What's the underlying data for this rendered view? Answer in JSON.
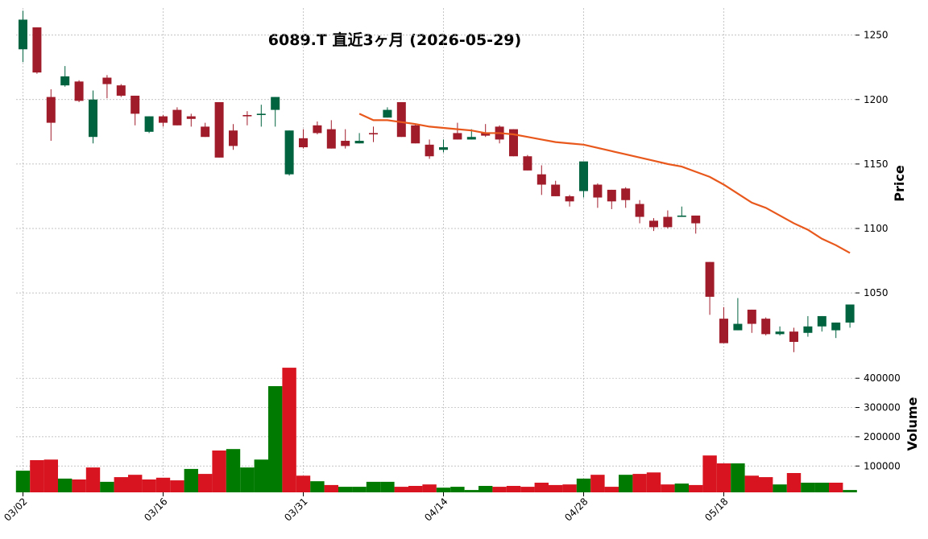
{
  "chart_data": {
    "type": "candlestick",
    "title": "6089.T  直近3ヶ月  (2026-05-29)",
    "categories": [
      "03/02",
      null,
      null,
      null,
      null,
      null,
      null,
      null,
      null,
      null,
      "03/16",
      null,
      null,
      null,
      null,
      null,
      null,
      null,
      null,
      null,
      "03/31",
      null,
      null,
      null,
      null,
      null,
      null,
      null,
      null,
      null,
      "04/14",
      null,
      null,
      null,
      null,
      null,
      null,
      null,
      null,
      null,
      "04/28",
      null,
      null,
      null,
      null,
      null,
      null,
      null,
      null,
      null,
      "05/18",
      null,
      null,
      null,
      null,
      null,
      null,
      null,
      null,
      null
    ],
    "open": [
      1239,
      1256,
      1202,
      1211,
      1214,
      1171,
      1217,
      1211,
      1203,
      1175,
      1187,
      1192,
      1187,
      1179,
      1198,
      1176,
      1188,
      1188,
      1192,
      1142,
      1170,
      1180,
      1177,
      1168,
      1166,
      1174,
      1186,
      1198,
      1180,
      1165,
      1161,
      1174,
      1169,
      1174,
      1179,
      1177,
      1156,
      1142,
      1134,
      1125,
      1129,
      1134,
      1130,
      1131,
      1119,
      1106,
      1109,
      1109,
      1110,
      1074,
      1030,
      1021,
      1037,
      1030,
      1018,
      1020,
      1019,
      1024,
      1021,
      1027
    ],
    "high": [
      1269,
      1256,
      1208,
      1226,
      1215,
      1207,
      1219,
      1212,
      1203,
      1187,
      1188,
      1194,
      1189,
      1182,
      1198,
      1181,
      1191,
      1196,
      1202,
      1176,
      1177,
      1183,
      1184,
      1177,
      1174,
      1179,
      1194,
      1198,
      1181,
      1169,
      1169,
      1182,
      1177,
      1181,
      1180,
      1177,
      1157,
      1149,
      1137,
      1126,
      1152,
      1135,
      1130,
      1132,
      1122,
      1108,
      1114,
      1117,
      1110,
      1074,
      1039,
      1046,
      1037,
      1031,
      1024,
      1023,
      1032,
      1032,
      1027,
      1041
    ],
    "low": [
      1229,
      1220,
      1168,
      1210,
      1198,
      1166,
      1201,
      1202,
      1180,
      1174,
      1179,
      1180,
      1179,
      1171,
      1155,
      1161,
      1180,
      1179,
      1179,
      1141,
      1162,
      1173,
      1162,
      1162,
      1166,
      1167,
      1186,
      1171,
      1166,
      1154,
      1159,
      1169,
      1169,
      1171,
      1166,
      1156,
      1145,
      1126,
      1125,
      1117,
      1124,
      1116,
      1115,
      1116,
      1104,
      1098,
      1100,
      1109,
      1096,
      1033,
      1011,
      1021,
      1019,
      1017,
      1017,
      1004,
      1016,
      1020,
      1015,
      1023
    ],
    "close": [
      1262,
      1221,
      1182,
      1218,
      1199,
      1200,
      1212,
      1203,
      1189,
      1187,
      1182,
      1180,
      1185,
      1171,
      1155,
      1164,
      1187,
      1189,
      1202,
      1176,
      1163,
      1174,
      1162,
      1164,
      1168,
      1173,
      1192,
      1171,
      1166,
      1156,
      1163,
      1169,
      1171,
      1172,
      1169,
      1156,
      1145,
      1134,
      1125,
      1121,
      1152,
      1124,
      1121,
      1122,
      1109,
      1101,
      1101,
      1110,
      1104,
      1047,
      1011,
      1026,
      1026,
      1018,
      1020,
      1012,
      1024,
      1032,
      1027,
      1041
    ],
    "up_color": "#006340",
    "down_color": "#a01c2a",
    "moving_average": {
      "color": "#e8581c",
      "values": [
        null,
        null,
        null,
        null,
        null,
        null,
        null,
        null,
        null,
        null,
        null,
        null,
        null,
        null,
        null,
        null,
        null,
        null,
        null,
        null,
        null,
        null,
        null,
        null,
        1189,
        1184,
        1184,
        1182.5,
        1181,
        1179,
        1178,
        1177,
        1176,
        1174,
        1174,
        1173,
        1171,
        1169,
        1167,
        1166,
        1165,
        1162.5,
        1160,
        1157.5,
        1155,
        1152.5,
        1150,
        1148,
        1144,
        1140,
        1134,
        1127,
        1120,
        1116,
        1110,
        1104,
        1099,
        1092,
        1087,
        1081
      ]
    },
    "ylabel": "Price",
    "ylim": [
      1002,
      1271
    ],
    "yticks": [
      1050,
      1100,
      1150,
      1200,
      1250
    ],
    "volume": {
      "ylabel": "Volume",
      "ylim": [
        10000,
        450000
      ],
      "yticks": [
        100000,
        200000,
        300000,
        400000
      ],
      "values": [
        84000,
        120000,
        122000,
        57000,
        54000,
        95000,
        46000,
        62000,
        70000,
        54000,
        60000,
        51000,
        90000,
        73000,
        153000,
        158000,
        95000,
        122000,
        373000,
        436000,
        67000,
        48000,
        35000,
        29000,
        29000,
        46000,
        46000,
        29000,
        32000,
        37000,
        26000,
        29000,
        18000,
        32000,
        29000,
        32000,
        29000,
        43000,
        35000,
        37000,
        57000,
        70000,
        29000,
        70000,
        73000,
        78000,
        37000,
        40000,
        35000,
        136000,
        109000,
        109000,
        67000,
        62000,
        37000,
        76000,
        43000,
        43000,
        43000,
        18000
      ],
      "colors": [
        "#007a00",
        "#d7141f",
        "#d7141f",
        "#007a00",
        "#d7141f",
        "#d7141f",
        "#007a00",
        "#d7141f",
        "#d7141f",
        "#d7141f",
        "#d7141f",
        "#d7141f",
        "#007a00",
        "#d7141f",
        "#d7141f",
        "#007a00",
        "#007a00",
        "#007a00",
        "#007a00",
        "#d7141f",
        "#d7141f",
        "#007a00",
        "#d7141f",
        "#007a00",
        "#007a00",
        "#007a00",
        "#007a00",
        "#d7141f",
        "#d7141f",
        "#d7141f",
        "#007a00",
        "#007a00",
        "#007a00",
        "#007a00",
        "#d7141f",
        "#d7141f",
        "#d7141f",
        "#d7141f",
        "#d7141f",
        "#d7141f",
        "#007a00",
        "#d7141f",
        "#d7141f",
        "#007a00",
        "#d7141f",
        "#d7141f",
        "#d7141f",
        "#007a00",
        "#d7141f",
        "#d7141f",
        "#d7141f",
        "#007a00",
        "#d7141f",
        "#d7141f",
        "#007a00",
        "#d7141f",
        "#007a00",
        "#007a00",
        "#d7141f",
        "#007a00"
      ]
    },
    "grid": true
  }
}
